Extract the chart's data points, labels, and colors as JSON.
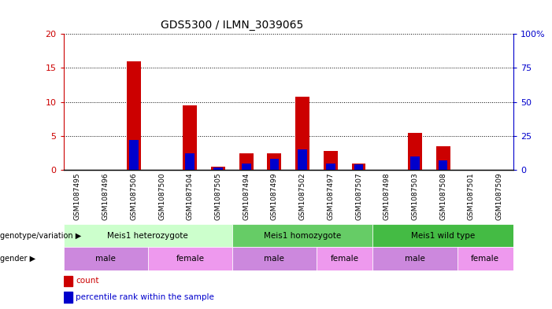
{
  "title": "GDS5300 / ILMN_3039065",
  "samples": [
    "GSM1087495",
    "GSM1087496",
    "GSM1087506",
    "GSM1087500",
    "GSM1087504",
    "GSM1087505",
    "GSM1087494",
    "GSM1087499",
    "GSM1087502",
    "GSM1087497",
    "GSM1087507",
    "GSM1087498",
    "GSM1087503",
    "GSM1087508",
    "GSM1087501",
    "GSM1087509"
  ],
  "counts": [
    0,
    0,
    16,
    0,
    9.5,
    0.5,
    2.5,
    2.5,
    10.8,
    2.8,
    1.0,
    0,
    5.5,
    3.5,
    0,
    0
  ],
  "percentiles": [
    0,
    0,
    4.4,
    0,
    2.4,
    0.4,
    1.0,
    1.6,
    3.0,
    1.0,
    0.8,
    0,
    2.0,
    1.4,
    0,
    0
  ],
  "count_color": "#cc0000",
  "percentile_color": "#0000cc",
  "ylim_left": [
    0,
    20
  ],
  "ylim_right": [
    0,
    100
  ],
  "yticks_left": [
    0,
    5,
    10,
    15,
    20
  ],
  "yticks_right": [
    0,
    25,
    50,
    75,
    100
  ],
  "ytick_labels_left": [
    "0",
    "5",
    "10",
    "15",
    "20"
  ],
  "ytick_labels_right": [
    "0",
    "25",
    "50",
    "75",
    "100%"
  ],
  "genotype_groups": [
    {
      "label": "Meis1 heterozygote",
      "start": 0,
      "end": 5
    },
    {
      "label": "Meis1 homozygote",
      "start": 6,
      "end": 10
    },
    {
      "label": "Meis1 wild type",
      "start": 11,
      "end": 15
    }
  ],
  "genotype_colors": [
    "#ccffcc",
    "#66cc66",
    "#44bb44"
  ],
  "gender_groups": [
    {
      "label": "male",
      "start": 0,
      "end": 2
    },
    {
      "label": "female",
      "start": 3,
      "end": 5
    },
    {
      "label": "male",
      "start": 6,
      "end": 8
    },
    {
      "label": "female",
      "start": 9,
      "end": 10
    },
    {
      "label": "male",
      "start": 11,
      "end": 13
    },
    {
      "label": "female",
      "start": 14,
      "end": 15
    }
  ],
  "gender_colors": [
    "#cc88dd",
    "#ee99ee",
    "#cc88dd",
    "#ee99ee",
    "#cc88dd",
    "#ee99ee"
  ],
  "genotype_label": "genotype/variation",
  "gender_label": "gender",
  "legend_count": "count",
  "legend_percentile": "percentile rank within the sample",
  "bar_width": 0.5,
  "left_axis_color": "#cc0000",
  "right_axis_color": "#0000cc"
}
